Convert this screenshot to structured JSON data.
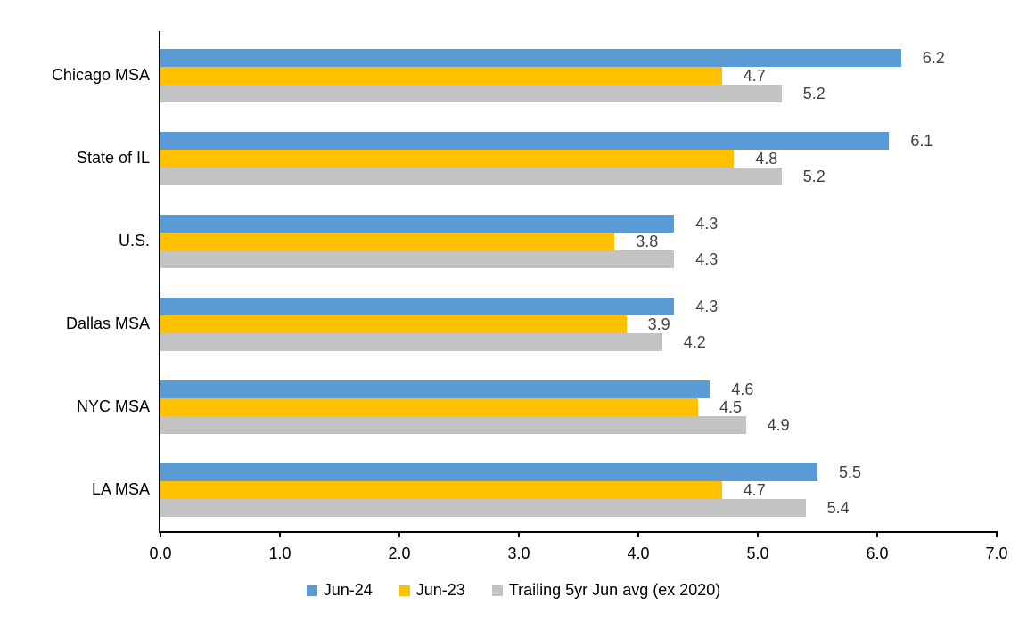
{
  "chart_data": {
    "type": "bar",
    "orientation": "horizontal",
    "title": "",
    "xlabel": "",
    "ylabel": "",
    "categories": [
      "Chicago MSA",
      "State of IL",
      "U.S.",
      "Dallas MSA",
      "NYC MSA",
      "LA MSA"
    ],
    "series": [
      {
        "name": "Jun-24",
        "color": "#5B9BD5",
        "values": [
          6.2,
          6.1,
          4.3,
          4.3,
          4.6,
          5.5
        ]
      },
      {
        "name": "Jun-23",
        "color": "#FFC000",
        "values": [
          4.7,
          4.8,
          3.8,
          3.9,
          4.5,
          4.7
        ]
      },
      {
        "name": "Trailing 5yr Jun avg (ex 2020)",
        "color": "#C3C3C3",
        "values": [
          5.2,
          5.2,
          4.3,
          4.2,
          4.9,
          5.4
        ]
      }
    ],
    "xlim": [
      0.0,
      7.0
    ],
    "x_ticks": [
      "0.0",
      "1.0",
      "2.0",
      "3.0",
      "4.0",
      "5.0",
      "6.0",
      "7.0"
    ],
    "value_labels_shown": true,
    "value_label_decimals": 1,
    "grid": false,
    "legend_position": "bottom"
  },
  "colors": {
    "background": "#FFFFFF",
    "axis_line": "#000000",
    "value_label_text": "#404040",
    "axis_text": "#000000",
    "legend_text": "#000000"
  }
}
